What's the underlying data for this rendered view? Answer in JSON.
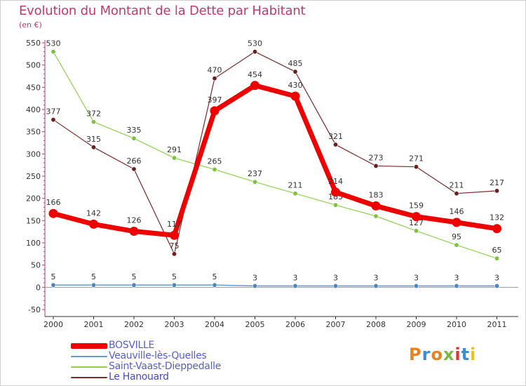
{
  "header": {
    "title": "Evolution du Montant de la Dette par Habitant",
    "unit": "(en €)"
  },
  "logo": {
    "text": "Proxiti",
    "colors": [
      "#e8821e",
      "#3a8fd0",
      "#e8821e",
      "#7ab648",
      "#d33",
      "#3a8fd0",
      "#e8c21e"
    ]
  },
  "chart_data": {
    "type": "line",
    "title": "Evolution du Montant de la Dette par Habitant",
    "ylabel": "(en €)",
    "xlabel": "",
    "x": [
      "2000",
      "2001",
      "2002",
      "2003",
      "2004",
      "2005",
      "2006",
      "2007",
      "2008",
      "2009",
      "2010",
      "2011"
    ],
    "ylim": [
      -50,
      550
    ],
    "yticks": [
      "-50",
      "0",
      "50",
      "100",
      "150",
      "200",
      "250",
      "300",
      "350",
      "400",
      "450",
      "500",
      "550"
    ],
    "grid": false,
    "legend_position": "bottom-left",
    "series": [
      {
        "name": "Saint-Vaast-Dieppedalle",
        "color": "#8fd14f",
        "marker": "#7cc23f",
        "width": 1.2,
        "values": [
          530,
          372,
          335,
          291,
          265,
          237,
          211,
          185,
          160,
          127,
          95,
          65
        ],
        "labels": [
          "530",
          "372",
          "335",
          "291",
          "265",
          "237",
          "211",
          "185",
          "",
          "127",
          "95",
          "65"
        ]
      },
      {
        "name": "Le Hanouard",
        "color": "#7a2a2a",
        "marker": "#6a1f1f",
        "width": 1.2,
        "values": [
          377,
          315,
          266,
          75,
          470,
          530,
          485,
          321,
          273,
          271,
          211,
          217
        ],
        "labels": [
          "377",
          "315",
          "266",
          "75",
          "470",
          "530",
          "485",
          "321",
          "273",
          "271",
          "211",
          "217"
        ]
      },
      {
        "name": "Veauville-lès-Quelles",
        "color": "#6699cc",
        "marker": "#4a86c0",
        "width": 1.5,
        "values": [
          5,
          5,
          5,
          5,
          5,
          3,
          3,
          3,
          3,
          3,
          3,
          3
        ],
        "labels": [
          "5",
          "5",
          "5",
          "5",
          "5",
          "3",
          "3",
          "3",
          "3",
          "3",
          "3",
          "3"
        ]
      },
      {
        "name": "BOSVILLE",
        "color": "#ee0000",
        "marker": "#ee0000",
        "width": 7,
        "values": [
          166,
          142,
          126,
          117,
          397,
          454,
          430,
          214,
          183,
          159,
          146,
          132
        ],
        "labels": [
          "166",
          "142",
          "126",
          "117",
          "397",
          "454",
          "430",
          "214",
          "183",
          "159",
          "146",
          "132"
        ]
      }
    ],
    "legend_order": [
      "BOSVILLE",
      "Veauville-lès-Quelles",
      "Saint-Vaast-Dieppedalle",
      "Le Hanouard"
    ]
  }
}
